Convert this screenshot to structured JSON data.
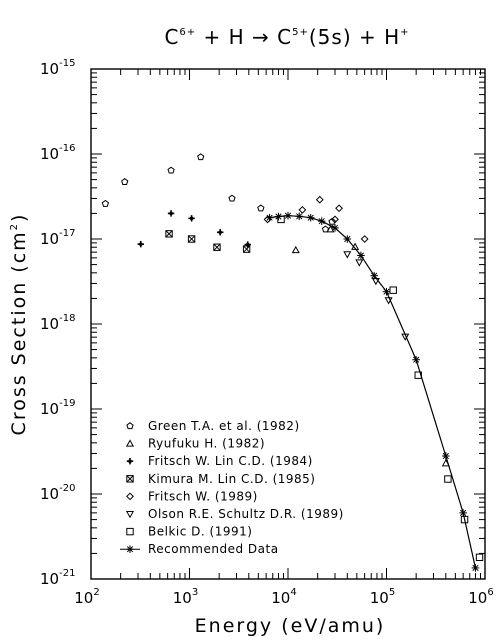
{
  "chart_data": {
    "type": "scatter",
    "title_parts": {
      "a": "C",
      "a_sup": "6+",
      "b": " + H → C",
      "b_sup": "5+",
      "c": "(5s) + H",
      "c_sup": "+"
    },
    "xlabel": "Energy (eV/amu)",
    "ylabel": "Cross Section (cm",
    "ylabel_sup": "2",
    "ylabel_end": ")",
    "x_scale": "log",
    "y_scale": "log",
    "xlim": [
      100,
      1000000
    ],
    "ylim": [
      1e-21,
      1e-15
    ],
    "x_ticks": [
      {
        "base": "10",
        "exp": "2",
        "value": 100
      },
      {
        "base": "10",
        "exp": "3",
        "value": 1000
      },
      {
        "base": "10",
        "exp": "4",
        "value": 10000
      },
      {
        "base": "10",
        "exp": "5",
        "value": 100000
      },
      {
        "base": "10",
        "exp": "6",
        "value": 1000000
      }
    ],
    "y_ticks": [
      {
        "base": "10",
        "exp": "-15",
        "value": 1e-15
      },
      {
        "base": "10",
        "exp": "-16",
        "value": 1e-16
      },
      {
        "base": "10",
        "exp": "-17",
        "value": 1e-17
      },
      {
        "base": "10",
        "exp": "-18",
        "value": 1e-18
      },
      {
        "base": "10",
        "exp": "-19",
        "value": 1e-19
      },
      {
        "base": "10",
        "exp": "-20",
        "value": 1e-20
      },
      {
        "base": "10",
        "exp": "-21",
        "value": 1e-21
      }
    ],
    "grid": false,
    "legend_position": "bottom-left",
    "series": [
      {
        "name": "Green T.A. et al. (1982)",
        "marker": "pentagon",
        "points": [
          [
            140,
            2.6e-17
          ],
          [
            220,
            4.7e-17
          ],
          [
            650,
            6.4e-17
          ],
          [
            1300,
            9.2e-17
          ],
          [
            2700,
            3e-17
          ],
          [
            5300,
            2.3e-17
          ],
          [
            24000,
            1.3e-17
          ],
          [
            28000,
            1.6e-17
          ]
        ]
      },
      {
        "name": "Ryufuku H. (1982)",
        "marker": "triangle-up",
        "points": [
          [
            12000,
            7.4e-18
          ],
          [
            27000,
            1.3e-17
          ],
          [
            48000,
            8.1e-18
          ],
          [
            400000,
            2.3e-20
          ]
        ]
      },
      {
        "name": "Fritsch W. Lin C.D. (1984)",
        "marker": "plus-cross",
        "points": [
          [
            320,
            8.7e-18
          ],
          [
            650,
            2e-17
          ],
          [
            1050,
            1.75e-17
          ],
          [
            2050,
            1.2e-17
          ],
          [
            3900,
            8.6e-18
          ]
        ]
      },
      {
        "name": "Kimura M. Lin C.D. (1985)",
        "marker": "x-square",
        "points": [
          [
            620,
            1.15e-17
          ],
          [
            1050,
            1e-17
          ],
          [
            1900,
            8e-18
          ],
          [
            3800,
            7.6e-18
          ]
        ]
      },
      {
        "name": "Fritsch W. (1989)",
        "marker": "diamond",
        "points": [
          [
            6200,
            1.7e-17
          ],
          [
            14000,
            2.2e-17
          ],
          [
            21000,
            2.9e-17
          ],
          [
            30000,
            1.7e-17
          ],
          [
            33000,
            2.3e-17
          ],
          [
            60000,
            1e-17
          ]
        ]
      },
      {
        "name": "Olson R.E. Schultz D.R. (1989)",
        "marker": "triangle-down",
        "points": [
          [
            40000,
            6.6e-18
          ],
          [
            53000,
            5.3e-18
          ],
          [
            78000,
            3.2e-18
          ],
          [
            105000,
            1.9e-18
          ],
          [
            155000,
            7.1e-19
          ]
        ]
      },
      {
        "name": "Belkic D. (1991)",
        "marker": "square",
        "points": [
          [
            8500,
            1.7e-17
          ],
          [
            117000,
            2.5e-18
          ],
          [
            210000,
            2.5e-19
          ],
          [
            420000,
            1.5e-20
          ],
          [
            620000,
            5e-21
          ],
          [
            880000,
            1.8e-21
          ]
        ]
      },
      {
        "name": "Recommended Data",
        "marker": "asterisk",
        "line": true,
        "points": [
          [
            6500,
            1.78e-17
          ],
          [
            8000,
            1.84e-17
          ],
          [
            10000,
            1.88e-17
          ],
          [
            13000,
            1.85e-17
          ],
          [
            17000,
            1.78e-17
          ],
          [
            22000,
            1.62e-17
          ],
          [
            30000,
            1.35e-17
          ],
          [
            40000,
            1e-17
          ],
          [
            55000,
            6.4e-18
          ],
          [
            75000,
            3.7e-18
          ],
          [
            100000,
            2.4e-18
          ],
          [
            200000,
            3.8e-19
          ],
          [
            400000,
            2.8e-20
          ],
          [
            600000,
            6e-21
          ],
          [
            800000,
            1.35e-21
          ]
        ]
      }
    ]
  }
}
